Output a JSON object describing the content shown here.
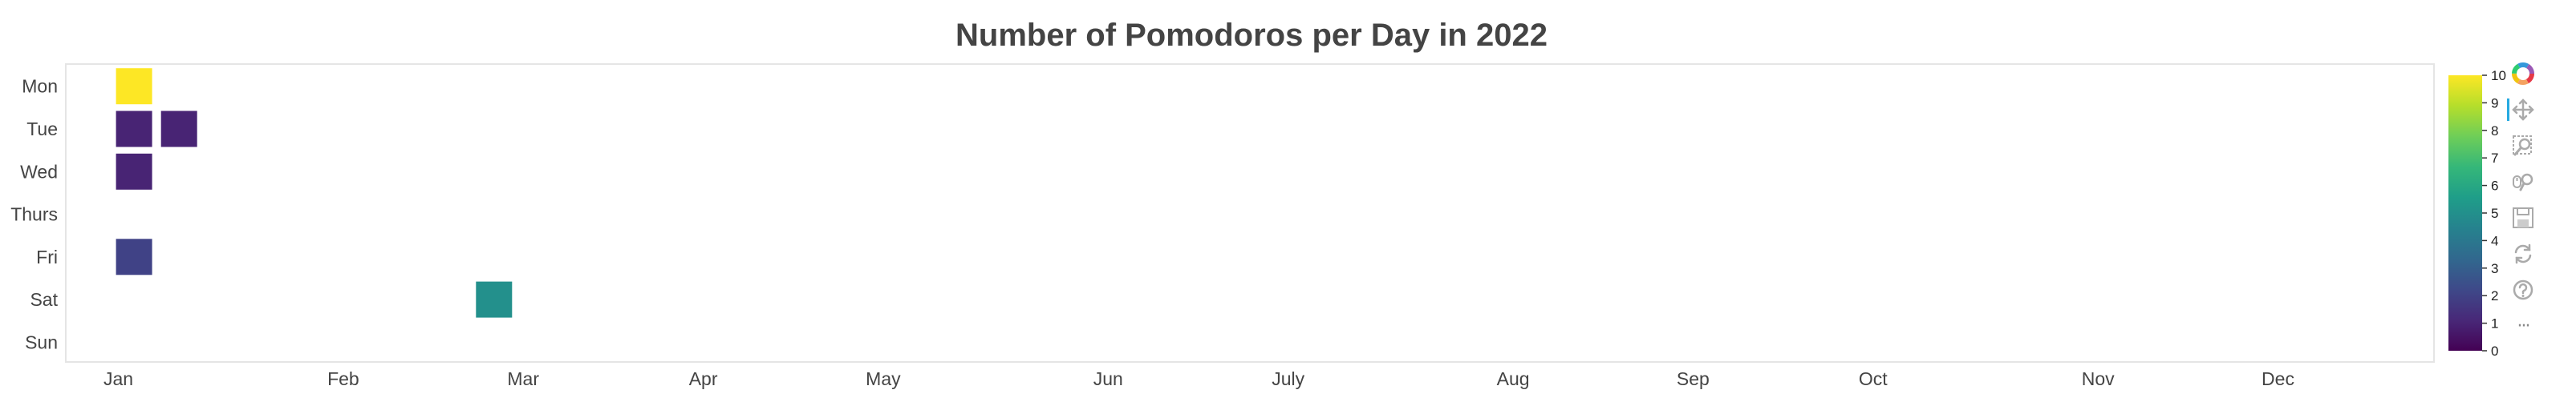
{
  "chart_data": {
    "type": "heatmap",
    "title": "Number of Pomodoros per Day in 2022",
    "xlabel": "",
    "ylabel": "",
    "weekdays": [
      "Mon",
      "Tue",
      "Wed",
      "Thurs",
      "Fri",
      "Sat",
      "Sun"
    ],
    "month_ticks": [
      {
        "label": "Jan",
        "week": 1.15
      },
      {
        "label": "Feb",
        "week": 6.15
      },
      {
        "label": "Mar",
        "week": 10.15
      },
      {
        "label": "Apr",
        "week": 14.15
      },
      {
        "label": "May",
        "week": 18.15
      },
      {
        "label": "Jun",
        "week": 23.15
      },
      {
        "label": "July",
        "week": 27.15
      },
      {
        "label": "Aug",
        "week": 32.15
      },
      {
        "label": "Sep",
        "week": 36.15
      },
      {
        "label": "Oct",
        "week": 40.15
      },
      {
        "label": "Nov",
        "week": 45.15
      },
      {
        "label": "Dec",
        "week": 49.15
      }
    ],
    "week_range": [
      0,
      52.6
    ],
    "cells": [
      {
        "week": 1,
        "day": "Mon",
        "value": 10
      },
      {
        "week": 1,
        "day": "Tue",
        "value": 1
      },
      {
        "week": 2,
        "day": "Tue",
        "value": 1
      },
      {
        "week": 1,
        "day": "Wed",
        "value": 1
      },
      {
        "week": 1,
        "day": "Fri",
        "value": 2
      },
      {
        "week": 9,
        "day": "Sat",
        "value": 5
      }
    ],
    "colorbar": {
      "low": 0,
      "high": 10,
      "ticks": [
        0,
        1,
        2,
        3,
        4,
        5,
        6,
        7,
        8,
        9,
        10
      ],
      "palette": "Viridis",
      "stops": [
        "#440154",
        "#482878",
        "#3e4989",
        "#31688e",
        "#26828e",
        "#1f9e89",
        "#35b779",
        "#6ece58",
        "#b5de2b",
        "#fde725"
      ]
    }
  },
  "toolbar": {
    "tools": [
      {
        "name": "bokeh-logo",
        "icon": "bokeh-logo-icon"
      },
      {
        "name": "pan",
        "icon": "pan-icon"
      },
      {
        "name": "box-zoom",
        "icon": "box-zoom-icon"
      },
      {
        "name": "wheel-zoom",
        "icon": "wheel-zoom-icon"
      },
      {
        "name": "save",
        "icon": "save-icon"
      },
      {
        "name": "reset",
        "icon": "reset-icon"
      },
      {
        "name": "help",
        "icon": "help-icon"
      },
      {
        "name": "more",
        "icon": "more-icon",
        "label": "···"
      }
    ]
  }
}
